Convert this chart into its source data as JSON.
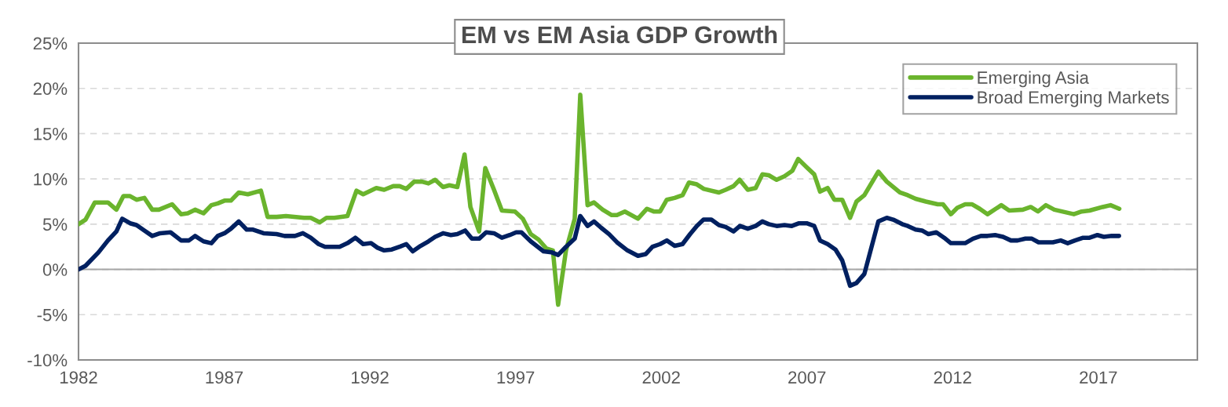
{
  "chart_data": {
    "type": "line",
    "title": "EM vs EM Asia GDP Growth",
    "xlim": [
      1982,
      2020.4
    ],
    "xticks": [
      1982,
      1987,
      1992,
      1997,
      2002,
      2007,
      2012,
      2017
    ],
    "ylim": [
      -10,
      25
    ],
    "yticks": [
      {
        "value": -10,
        "label": "-10%"
      },
      {
        "value": -5,
        "label": "-5%"
      },
      {
        "value": 0,
        "label": "0%"
      },
      {
        "value": 5,
        "label": "5%"
      },
      {
        "value": 10,
        "label": "10%"
      },
      {
        "value": 15,
        "label": "15%"
      },
      {
        "value": 20,
        "label": "20%"
      },
      {
        "value": 25,
        "label": "25%"
      }
    ],
    "grid": "y",
    "legend": "top right",
    "marker": "none",
    "line_style": "solid",
    "ref_lines": [
      {
        "axis": "y",
        "value": 0,
        "color": "#a6a6a6",
        "line_style": "solid"
      }
    ],
    "series": [
      {
        "name": "Emerging Asia",
        "color": "#6ab42d",
        "x": [
          1982.0,
          1982.24,
          1982.56,
          1983.01,
          1983.3,
          1983.54,
          1983.77,
          1983.99,
          1984.26,
          1984.53,
          1984.76,
          1985.21,
          1985.52,
          1985.75,
          1986.0,
          1986.29,
          1986.56,
          1986.78,
          1987.01,
          1987.23,
          1987.5,
          1987.81,
          1988.26,
          1988.49,
          1988.8,
          1989.12,
          1989.74,
          1989.97,
          1990.28,
          1990.51,
          1990.78,
          1991.23,
          1991.54,
          1991.77,
          1992.22,
          1992.49,
          1992.8,
          1993.02,
          1993.25,
          1993.52,
          1993.79,
          1994.01,
          1994.24,
          1994.51,
          1994.73,
          1995.0,
          1995.25,
          1995.45,
          1995.75,
          1995.96,
          1996.26,
          1996.53,
          1996.98,
          1997.25,
          1997.52,
          1997.79,
          1998.06,
          1998.28,
          1998.46,
          1998.73,
          1999.03,
          1999.22,
          1999.47,
          1999.69,
          1999.99,
          2000.3,
          2000.48,
          2000.75,
          2001.2,
          2001.51,
          2001.74,
          2001.96,
          2002.19,
          2002.46,
          2002.73,
          2002.95,
          2003.22,
          2003.46,
          2003.98,
          2004.21,
          2004.48,
          2004.69,
          2004.97,
          2005.24,
          2005.47,
          2005.69,
          2005.96,
          2006.23,
          2006.5,
          2006.7,
          2006.99,
          2007.25,
          2007.45,
          2007.71,
          2007.94,
          2008.21,
          2008.48,
          2008.7,
          2008.97,
          2009.45,
          2009.74,
          2010.19,
          2010.46,
          2010.73,
          2011.08,
          2011.49,
          2011.67,
          2011.94,
          2012.16,
          2012.43,
          2012.66,
          2012.93,
          2013.2,
          2013.67,
          2013.94,
          2014.41,
          2014.68,
          2014.93,
          2015.2,
          2015.49,
          2016.16,
          2016.43,
          2016.7,
          2017.15,
          2017.42,
          2017.72
        ],
        "values": [
          5.0,
          5.5,
          7.4,
          7.4,
          6.6,
          8.1,
          8.1,
          7.7,
          7.9,
          6.6,
          6.6,
          7.2,
          6.1,
          6.2,
          6.6,
          6.2,
          7.1,
          7.3,
          7.6,
          7.6,
          8.5,
          8.3,
          8.7,
          5.8,
          5.8,
          5.9,
          5.7,
          5.7,
          5.2,
          5.7,
          5.7,
          5.9,
          8.7,
          8.3,
          9.0,
          8.8,
          9.2,
          9.2,
          8.9,
          9.7,
          9.7,
          9.5,
          9.9,
          9.1,
          9.3,
          9.1,
          12.7,
          6.9,
          4.2,
          11.2,
          8.8,
          6.5,
          6.4,
          5.6,
          3.9,
          3.3,
          2.3,
          2.1,
          -3.9,
          2.1,
          5.6,
          19.3,
          7.1,
          7.4,
          6.6,
          6.0,
          6.0,
          6.4,
          5.6,
          6.7,
          6.4,
          6.4,
          7.7,
          7.9,
          8.2,
          9.6,
          9.4,
          8.9,
          8.5,
          8.8,
          9.2,
          9.9,
          8.8,
          9.0,
          10.5,
          10.4,
          9.9,
          10.3,
          10.9,
          12.2,
          11.3,
          10.5,
          8.6,
          9.0,
          7.7,
          7.7,
          5.7,
          7.5,
          8.2,
          10.8,
          9.7,
          8.5,
          8.2,
          7.8,
          7.5,
          7.2,
          7.2,
          6.1,
          6.8,
          7.2,
          7.2,
          6.7,
          6.1,
          7.1,
          6.5,
          6.6,
          6.9,
          6.4,
          7.1,
          6.6,
          6.1,
          6.4,
          6.5,
          6.9,
          7.1,
          6.7
        ]
      },
      {
        "name": "Broad Emerging Markets",
        "color": "#002060",
        "x": [
          1982.0,
          1982.24,
          1982.69,
          1983.01,
          1983.3,
          1983.5,
          1983.77,
          1983.99,
          1984.26,
          1984.53,
          1984.8,
          1985.16,
          1985.52,
          1985.79,
          1986.0,
          1986.29,
          1986.56,
          1986.78,
          1987.01,
          1987.23,
          1987.5,
          1987.77,
          1987.99,
          1988.35,
          1988.8,
          1989.07,
          1989.43,
          1989.7,
          1989.97,
          1990.24,
          1990.46,
          1990.96,
          1991.23,
          1991.5,
          1991.77,
          1992.04,
          1992.26,
          1992.49,
          1992.75,
          1993.02,
          1993.25,
          1993.47,
          1993.74,
          1994.01,
          1994.24,
          1994.51,
          1994.78,
          1995.0,
          1995.27,
          1995.5,
          1995.75,
          1995.99,
          1996.26,
          1996.53,
          1996.8,
          1997.02,
          1997.2,
          1997.52,
          1997.96,
          1998.23,
          1998.46,
          1998.73,
          1999.03,
          1999.22,
          1999.47,
          1999.69,
          1999.94,
          2000.21,
          2000.48,
          2000.84,
          2001.2,
          2001.47,
          2001.7,
          2001.96,
          2002.19,
          2002.46,
          2002.73,
          2002.99,
          2003.22,
          2003.45,
          2003.72,
          2003.98,
          2004.21,
          2004.48,
          2004.7,
          2004.97,
          2005.24,
          2005.47,
          2005.69,
          2005.96,
          2006.23,
          2006.48,
          2006.73,
          2006.99,
          2007.25,
          2007.45,
          2007.71,
          2007.98,
          2008.21,
          2008.48,
          2008.7,
          2008.97,
          2009.45,
          2009.74,
          2009.96,
          2010.27,
          2010.46,
          2010.73,
          2010.95,
          2011.17,
          2011.44,
          2011.71,
          2011.94,
          2012.43,
          2012.7,
          2012.97,
          2013.2,
          2013.46,
          2013.73,
          2014.0,
          2014.23,
          2014.5,
          2014.72,
          2014.95,
          2015.44,
          2015.71,
          2015.95,
          2016.2,
          2016.48,
          2016.7,
          2016.97,
          2017.19,
          2017.46,
          2017.71
        ],
        "values": [
          0.0,
          0.4,
          1.9,
          3.2,
          4.2,
          5.6,
          5.1,
          4.9,
          4.3,
          3.7,
          4.0,
          4.1,
          3.2,
          3.2,
          3.7,
          3.1,
          2.9,
          3.7,
          4.0,
          4.5,
          5.3,
          4.4,
          4.4,
          4.0,
          3.9,
          3.7,
          3.7,
          4.0,
          3.5,
          2.8,
          2.5,
          2.5,
          2.9,
          3.5,
          2.8,
          2.9,
          2.4,
          2.1,
          2.2,
          2.5,
          2.8,
          2.0,
          2.6,
          3.1,
          3.6,
          4.0,
          3.8,
          3.9,
          4.3,
          3.4,
          3.4,
          4.1,
          4.0,
          3.5,
          3.8,
          4.1,
          4.1,
          3.1,
          2.0,
          1.9,
          1.6,
          2.5,
          3.4,
          5.9,
          4.8,
          5.3,
          4.6,
          3.9,
          3.0,
          2.1,
          1.5,
          1.7,
          2.5,
          2.8,
          3.2,
          2.6,
          2.8,
          3.9,
          4.8,
          5.5,
          5.5,
          4.9,
          4.7,
          4.2,
          4.8,
          4.5,
          4.8,
          5.3,
          5.0,
          4.8,
          4.9,
          4.8,
          5.1,
          5.1,
          4.8,
          3.2,
          2.8,
          2.2,
          1.0,
          -1.8,
          -1.5,
          -0.5,
          5.3,
          5.7,
          5.5,
          5.0,
          4.8,
          4.4,
          4.3,
          3.9,
          4.1,
          3.5,
          2.9,
          2.9,
          3.4,
          3.7,
          3.7,
          3.8,
          3.6,
          3.2,
          3.2,
          3.4,
          3.4,
          3.0,
          3.0,
          3.2,
          2.9,
          3.2,
          3.5,
          3.5,
          3.8,
          3.6,
          3.7,
          3.7
        ]
      }
    ]
  }
}
